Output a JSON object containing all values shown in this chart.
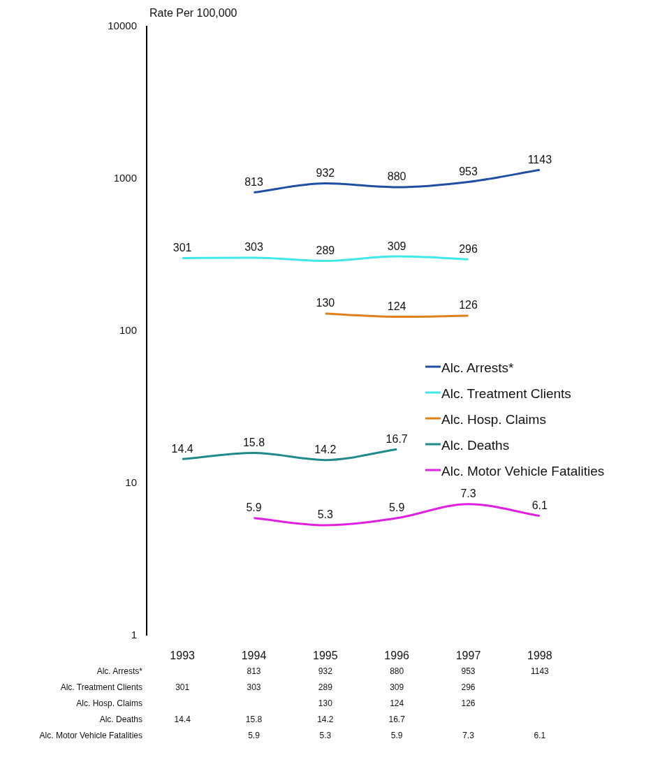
{
  "chart_data": {
    "type": "line",
    "ylabel": "Rate Per 100,000",
    "categories": [
      "1993",
      "1994",
      "1995",
      "1996",
      "1997",
      "1998"
    ],
    "series": [
      {
        "name": "Alc. Arrests*",
        "color": "#1f4ea3",
        "values": [
          null,
          813,
          932,
          880,
          953,
          1143
        ]
      },
      {
        "name": "Alc. Treatment Clients",
        "color": "#40e8e8",
        "values": [
          301,
          303,
          289,
          309,
          296,
          null
        ]
      },
      {
        "name": "Alc. Hosp. Claims",
        "color": "#e0801c",
        "values": [
          null,
          null,
          130,
          124,
          126,
          null
        ]
      },
      {
        "name": "Alc. Deaths",
        "color": "#1f8a8a",
        "values": [
          14.4,
          15.8,
          14.2,
          16.7,
          null,
          null
        ]
      },
      {
        "name": "Alc. Motor Vehicle Fatalities",
        "color": "#e020e0",
        "values": [
          null,
          5.9,
          5.3,
          5.9,
          7.3,
          6.1
        ]
      }
    ],
    "annotations": [
      {
        "text": "813",
        "x": "1994",
        "y": 813
      },
      {
        "text": "932",
        "x": "1995",
        "y": 932
      },
      {
        "text": "880",
        "x": "1996",
        "y": 880
      },
      {
        "text": "953",
        "x": "1997",
        "y": 953
      },
      {
        "text": "1143",
        "x": "1998",
        "y": 1143
      },
      {
        "text": "301",
        "x": "1993",
        "y": 301
      },
      {
        "text": "303",
        "x": "1994",
        "y": 303
      },
      {
        "text": "289",
        "x": "1995",
        "y": 289
      },
      {
        "text": "309",
        "x": "1996",
        "y": 309
      },
      {
        "text": "296",
        "x": "1997",
        "y": 296
      },
      {
        "text": "130",
        "x": "1995",
        "y": 130
      },
      {
        "text": "124",
        "x": "1996",
        "y": 124
      },
      {
        "text": "126",
        "x": "1997",
        "y": 126
      },
      {
        "text": "14.4",
        "x": "1993",
        "y": 14.4
      },
      {
        "text": "15.8",
        "x": "1994",
        "y": 15.8
      },
      {
        "text": "14.2",
        "x": "1995",
        "y": 14.2
      },
      {
        "text": "16.7",
        "x": "1996",
        "y": 16.7
      },
      {
        "text": "5.9",
        "x": "1994",
        "y": 5.9
      },
      {
        "text": "5.3",
        "x": "1995",
        "y": 5.3
      },
      {
        "text": "5.9",
        "x": "1996",
        "y": 5.9
      },
      {
        "text": "7.3",
        "x": "1997",
        "y": 7.3
      },
      {
        "text": "6.1",
        "x": "1998",
        "y": 6.1
      }
    ],
    "log": "y",
    "ylim": [
      1,
      10000
    ],
    "yticks": [
      1,
      10,
      100,
      1000,
      10000
    ],
    "grid": false,
    "legend": "right",
    "marker": "none",
    "line_style": "solid",
    "data_labels": true
  }
}
